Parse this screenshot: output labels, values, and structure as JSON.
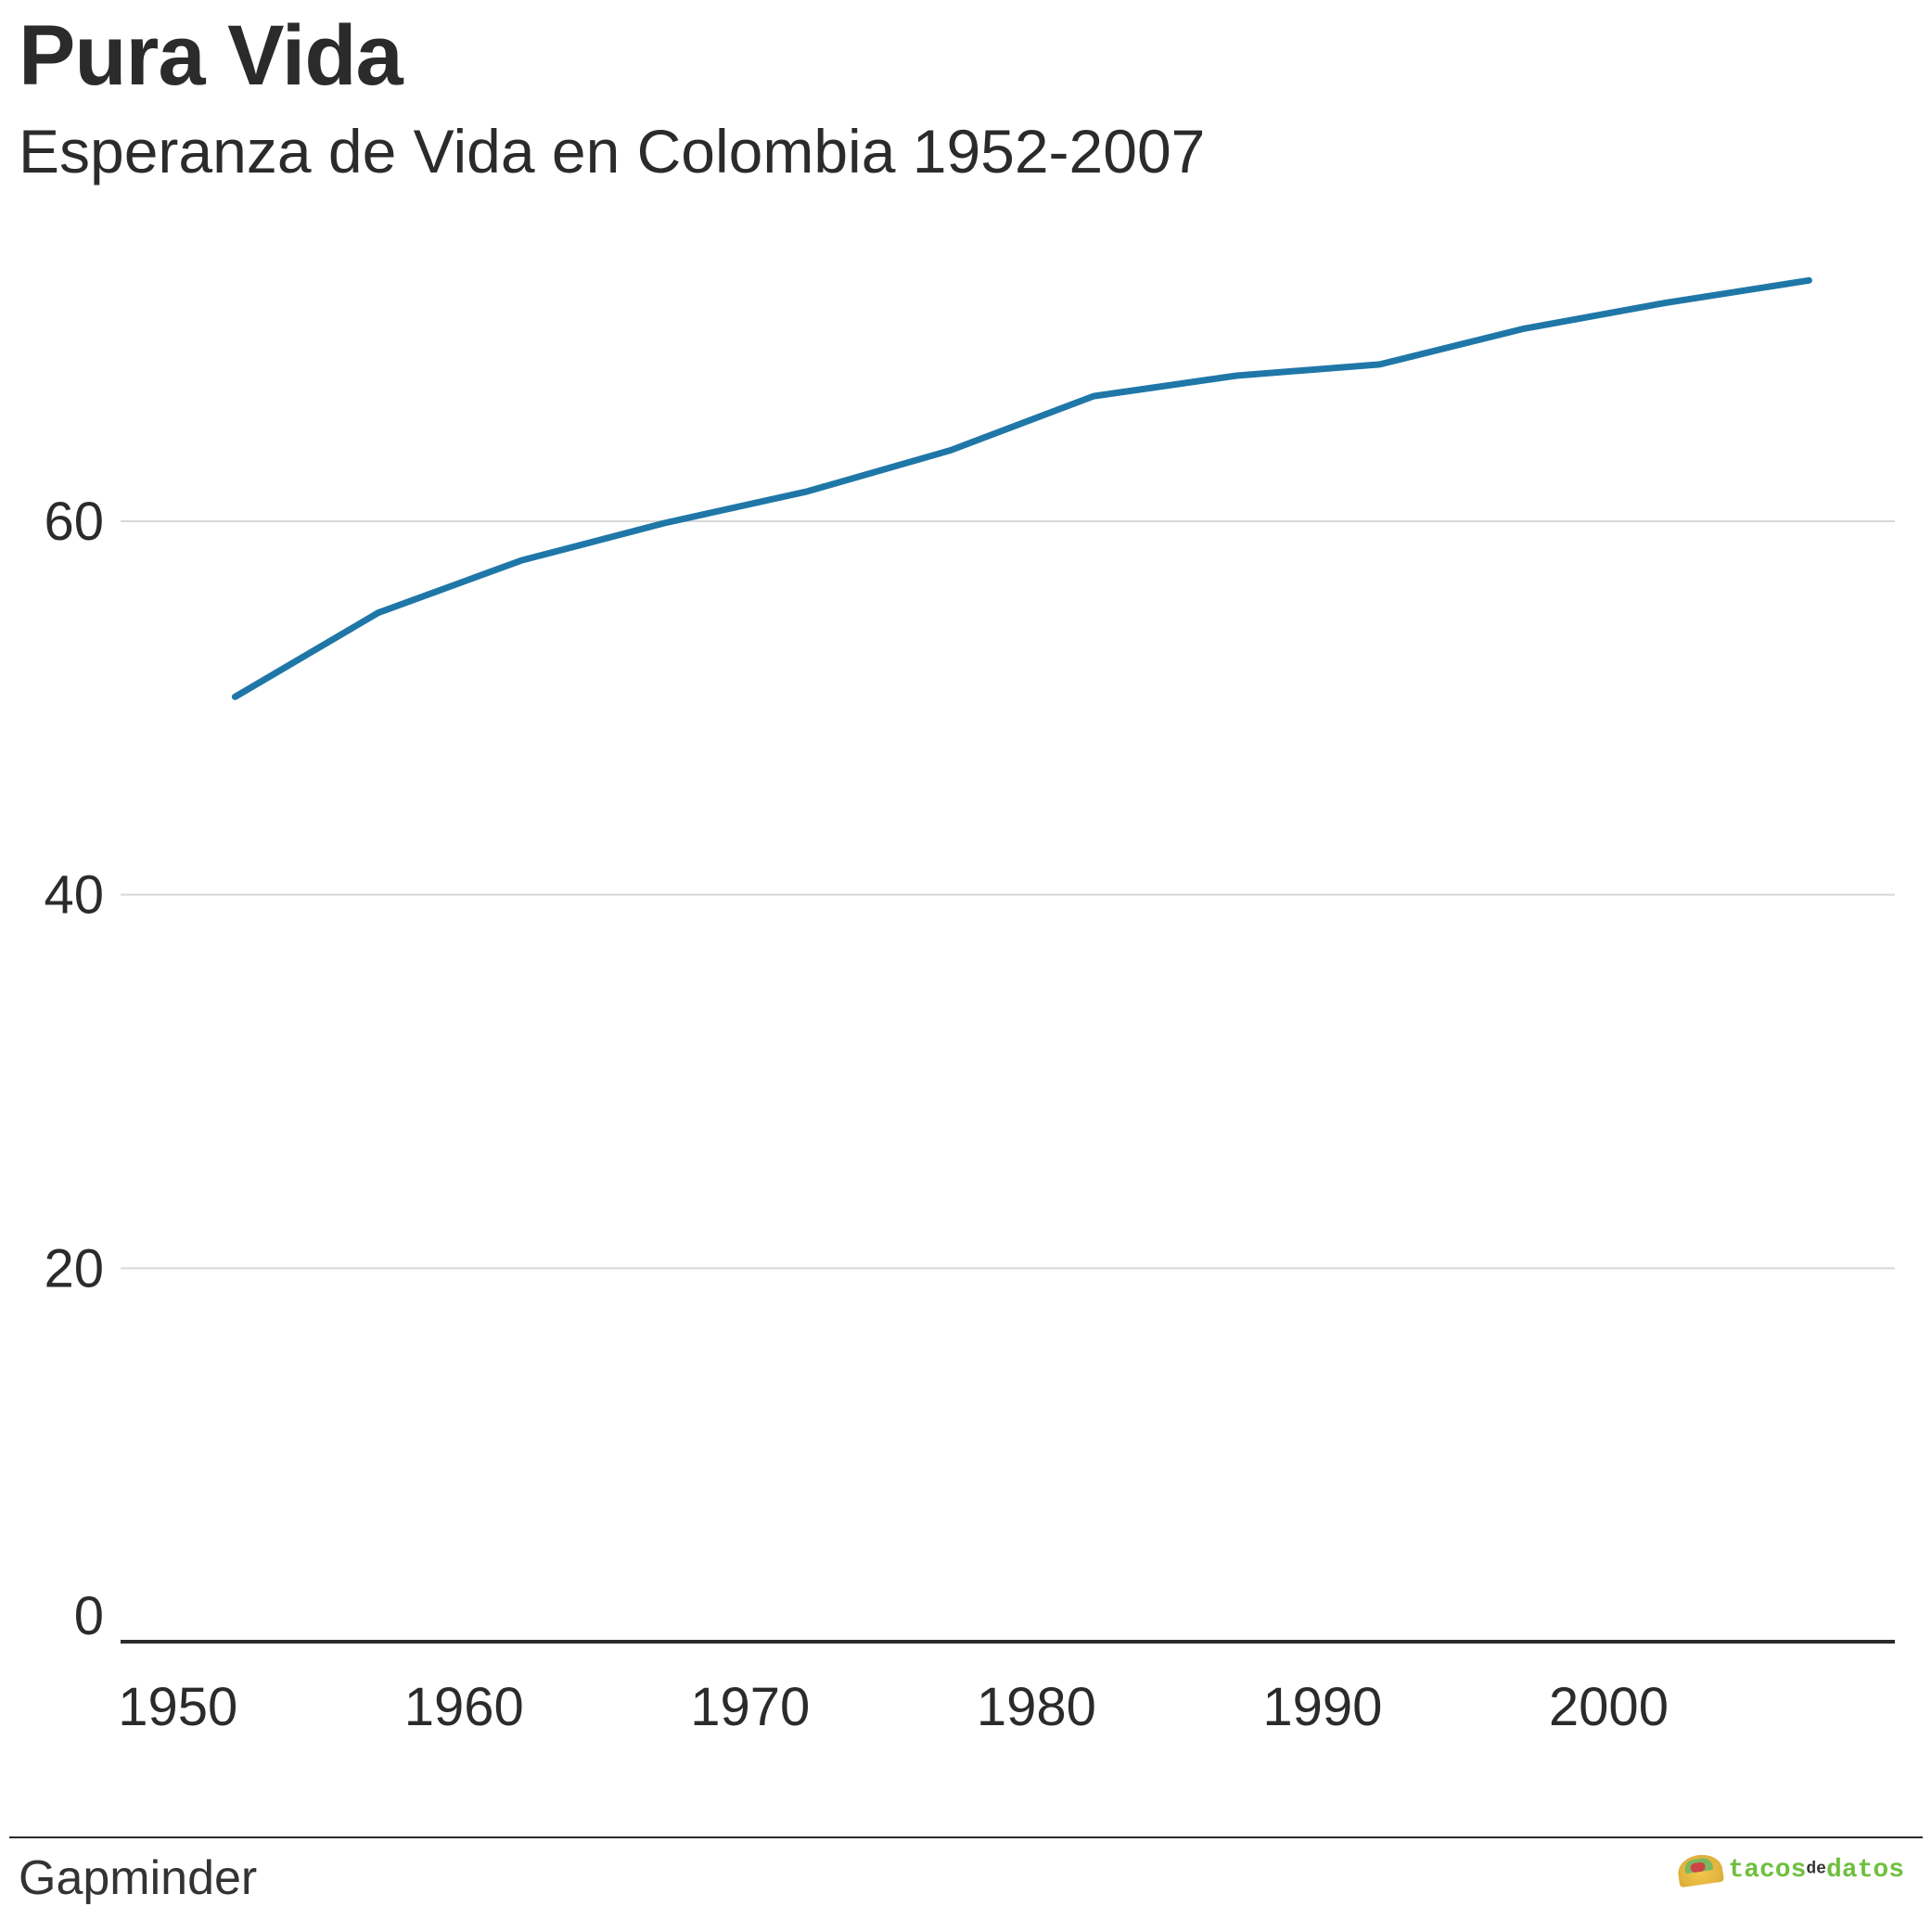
{
  "title": "Pura Vida",
  "subtitle": "Esperanza de Vida en Colombia 1952-2007",
  "source_label": "Gapminder",
  "brand": {
    "word1": "tacos",
    "mid": "de",
    "word2": "datos"
  },
  "chart": {
    "type": "line",
    "background_color": "#ffffff",
    "grid_color": "#d8d8d8",
    "zero_line_color": "#2b2b2b",
    "tick_label_color": "#2b2b2b",
    "tick_fontsize": 58,
    "title_fontsize": 92,
    "subtitle_fontsize": 66,
    "line_color": "#1f77a8",
    "line_width": 7,
    "xlim": [
      1948,
      2010
    ],
    "ylim": [
      0,
      75
    ],
    "xticks": [
      1950,
      1960,
      1970,
      1980,
      1990,
      2000
    ],
    "yticks": [
      0,
      20,
      40,
      60
    ],
    "x": [
      1952,
      1957,
      1962,
      1967,
      1972,
      1977,
      1982,
      1987,
      1992,
      1997,
      2002,
      2007
    ],
    "y": [
      50.6,
      55.1,
      57.9,
      59.9,
      61.6,
      63.8,
      66.7,
      67.8,
      68.4,
      70.3,
      71.7,
      72.9
    ]
  }
}
